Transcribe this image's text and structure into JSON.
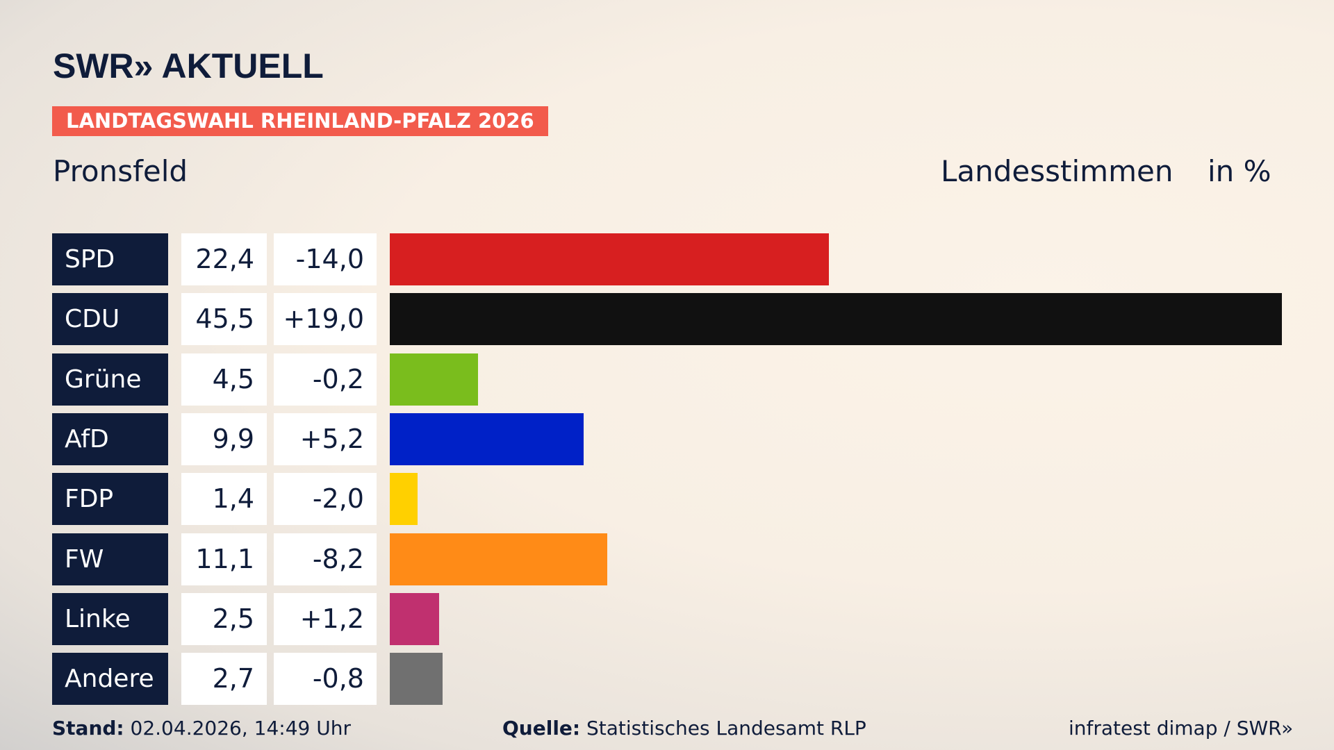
{
  "header": {
    "logo": "SWR» AKTUELL",
    "badge": "LANDTAGSWAHL RHEINLAND-PFALZ 2026",
    "place": "Pronsfeld",
    "metric": "Landesstimmen",
    "unit": "in %"
  },
  "footer": {
    "stand_label": "Stand:",
    "stand_value": "02.04.2026, 14:49 Uhr",
    "source_label": "Quelle:",
    "source_value": "Statistisches Landesamt RLP",
    "credit": "infratest dimap / SWR»"
  },
  "chart_data": {
    "type": "bar",
    "orientation": "horizontal",
    "title": "",
    "xlabel": "",
    "ylabel": "",
    "xlim": [
      0,
      45.5
    ],
    "grid": false,
    "legend": "none",
    "categories": [
      "SPD",
      "CDU",
      "Grüne",
      "AfD",
      "FDP",
      "FW",
      "Linke",
      "Andere"
    ],
    "values": [
      22.4,
      45.5,
      4.5,
      9.9,
      1.4,
      11.1,
      2.5,
      2.7
    ],
    "value_labels": [
      "22,4",
      "45,5",
      "4,5",
      "9,9",
      "1,4",
      "11,1",
      "2,5",
      "2,7"
    ],
    "diff_labels": [
      "-14,0",
      "+19,0",
      "-0,2",
      "+5,2",
      "-2,0",
      "-8,2",
      "+1,2",
      "-0,8"
    ],
    "colors": [
      "#d71f20",
      "#111111",
      "#7abd1d",
      "#0021c7",
      "#ffd000",
      "#ff8b17",
      "#c0306f",
      "#707070"
    ]
  }
}
